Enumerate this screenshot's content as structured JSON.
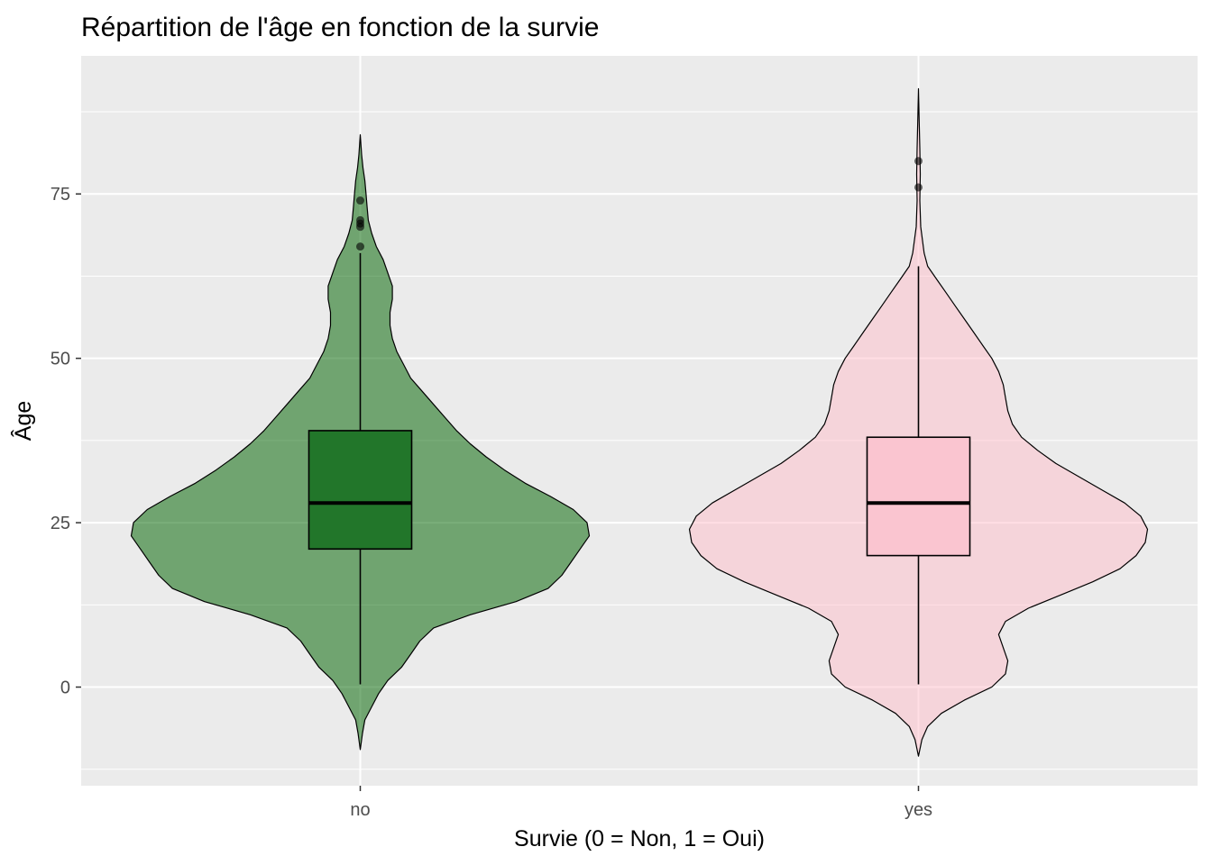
{
  "chart_data": {
    "type": "violin",
    "title": "Répartition de l'âge en fonction de la survie",
    "xlabel": "Survie (0 = Non, 1 = Oui)",
    "ylabel": "Âge",
    "categories": [
      "no",
      "yes"
    ],
    "y_ticks": [
      0,
      25,
      50,
      75
    ],
    "ylim": [
      -15,
      96
    ],
    "grid": true,
    "legend": "none",
    "series": [
      {
        "name": "no",
        "fill": "#006400",
        "box_fill": "#22762a",
        "violin_range": [
          -9.5,
          84
        ],
        "density": [
          [
            -9.5,
            0.0
          ],
          [
            -7,
            0.01
          ],
          [
            -5,
            0.02
          ],
          [
            -3,
            0.05
          ],
          [
            -1,
            0.08
          ],
          [
            1,
            0.12
          ],
          [
            3,
            0.18
          ],
          [
            5,
            0.22
          ],
          [
            7,
            0.26
          ],
          [
            9,
            0.32
          ],
          [
            11,
            0.48
          ],
          [
            13,
            0.68
          ],
          [
            15,
            0.82
          ],
          [
            17,
            0.88
          ],
          [
            19,
            0.92
          ],
          [
            21,
            0.96
          ],
          [
            23,
            1.0
          ],
          [
            25,
            0.99
          ],
          [
            27,
            0.93
          ],
          [
            29,
            0.83
          ],
          [
            31,
            0.72
          ],
          [
            33,
            0.63
          ],
          [
            35,
            0.55
          ],
          [
            37,
            0.48
          ],
          [
            39,
            0.42
          ],
          [
            41,
            0.37
          ],
          [
            43,
            0.32
          ],
          [
            45,
            0.27
          ],
          [
            47,
            0.22
          ],
          [
            49,
            0.19
          ],
          [
            51,
            0.16
          ],
          [
            53,
            0.14
          ],
          [
            55,
            0.13
          ],
          [
            57,
            0.13
          ],
          [
            59,
            0.14
          ],
          [
            61,
            0.14
          ],
          [
            63,
            0.12
          ],
          [
            65,
            0.1
          ],
          [
            67,
            0.07
          ],
          [
            69,
            0.05
          ],
          [
            71,
            0.035
          ],
          [
            73,
            0.03
          ],
          [
            75,
            0.025
          ],
          [
            77,
            0.02
          ],
          [
            79,
            0.012
          ],
          [
            81,
            0.006
          ],
          [
            84,
            0.0
          ]
        ],
        "box": {
          "q1": 21,
          "median": 28,
          "q3": 39,
          "whisker_low": 0.42,
          "whisker_high": 66
        },
        "outliers": [
          67,
          70,
          70.5,
          71,
          74
        ]
      },
      {
        "name": "yes",
        "fill": "#ffc0cb",
        "box_fill": "#fac5d0",
        "violin_range": [
          -10.5,
          91
        ],
        "density": [
          [
            -10.5,
            0.0
          ],
          [
            -8,
            0.015
          ],
          [
            -6,
            0.04
          ],
          [
            -4,
            0.1
          ],
          [
            -2,
            0.2
          ],
          [
            0,
            0.32
          ],
          [
            2,
            0.38
          ],
          [
            4,
            0.39
          ],
          [
            6,
            0.37
          ],
          [
            8,
            0.35
          ],
          [
            10,
            0.38
          ],
          [
            12,
            0.48
          ],
          [
            14,
            0.62
          ],
          [
            16,
            0.76
          ],
          [
            18,
            0.88
          ],
          [
            20,
            0.95
          ],
          [
            22,
            0.99
          ],
          [
            24,
            1.0
          ],
          [
            26,
            0.97
          ],
          [
            28,
            0.9
          ],
          [
            30,
            0.8
          ],
          [
            32,
            0.7
          ],
          [
            34,
            0.6
          ],
          [
            36,
            0.52
          ],
          [
            38,
            0.45
          ],
          [
            40,
            0.41
          ],
          [
            42,
            0.39
          ],
          [
            44,
            0.38
          ],
          [
            46,
            0.37
          ],
          [
            48,
            0.35
          ],
          [
            50,
            0.32
          ],
          [
            52,
            0.28
          ],
          [
            54,
            0.24
          ],
          [
            56,
            0.2
          ],
          [
            58,
            0.16
          ],
          [
            60,
            0.12
          ],
          [
            62,
            0.08
          ],
          [
            64,
            0.04
          ],
          [
            66,
            0.025
          ],
          [
            70,
            0.01
          ],
          [
            74,
            0.006
          ],
          [
            78,
            0.008
          ],
          [
            82,
            0.006
          ],
          [
            86,
            0.003
          ],
          [
            91,
            0.0
          ]
        ],
        "box": {
          "q1": 20,
          "median": 28,
          "q3": 38,
          "whisker_low": 0.42,
          "whisker_high": 64
        },
        "outliers": [
          76,
          80
        ]
      }
    ]
  }
}
